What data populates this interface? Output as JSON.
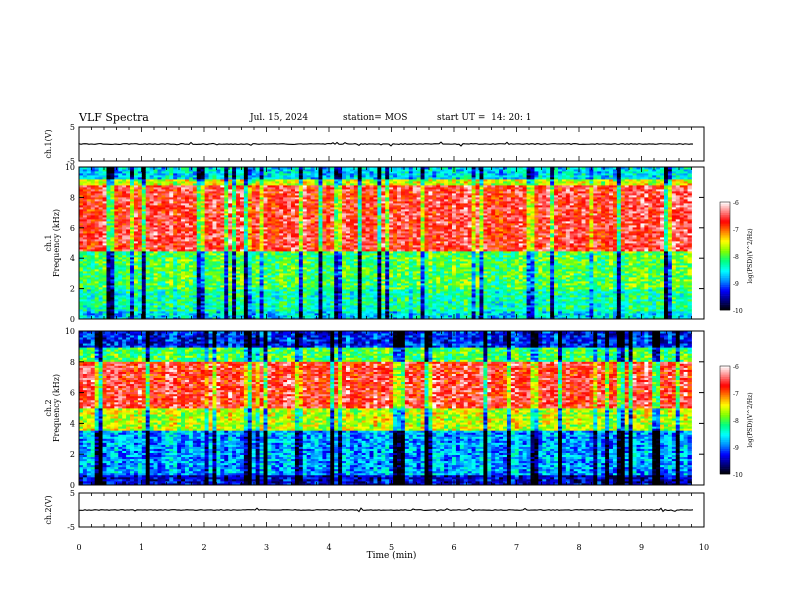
{
  "header": {
    "title": "VLF Spectra",
    "date": "Jul. 15, 2024",
    "station": "station= MOS",
    "start": "start UT =  14: 20: 1"
  },
  "chart_data": [
    {
      "type": "line",
      "name": "ch1-waveform",
      "ylabel": "ch.1(V)",
      "ylim": [
        -5,
        5
      ],
      "yticks": [
        "5",
        "-5"
      ],
      "xlim": [
        0,
        10
      ],
      "level": 0
    },
    {
      "type": "heatmap",
      "name": "ch1-spectrogram",
      "ylabel": "ch.1\nFrequency (kHz)",
      "ylabel_line1": "ch.1",
      "ylabel_line2": "Frequency (kHz)",
      "ylim": [
        0,
        10
      ],
      "yticks": [
        "0",
        "2",
        "4",
        "6",
        "8",
        "10"
      ],
      "xlim": [
        0,
        10
      ],
      "data_end_min": 9.8,
      "bands": [
        {
          "from": 0.0,
          "to": 0.5,
          "level": -8.6
        },
        {
          "from": 0.5,
          "to": 2.0,
          "level": -8.3
        },
        {
          "from": 2.0,
          "to": 4.5,
          "level": -8.0
        },
        {
          "from": 4.5,
          "to": 8.8,
          "level": -6.6
        },
        {
          "from": 8.8,
          "to": 9.2,
          "level": -7.6
        },
        {
          "from": 9.2,
          "to": 10.0,
          "level": -8.6
        }
      ],
      "colorbar": {
        "label": "log(PSD)(V²/Hz)",
        "label_text": "log(PSD)(V^2/Hz)",
        "min": -10,
        "max": -6,
        "ticks": [
          "-6",
          "-7",
          "-8",
          "-9",
          "-10"
        ]
      }
    },
    {
      "type": "heatmap",
      "name": "ch2-spectrogram",
      "ylabel_line1": "ch.2",
      "ylabel_line2": "Frequency (kHz)",
      "ylim": [
        0,
        10
      ],
      "yticks": [
        "0",
        "2",
        "4",
        "6",
        "8",
        "10"
      ],
      "xlim": [
        0,
        10
      ],
      "data_end_min": 9.8,
      "bands": [
        {
          "from": 0.0,
          "to": 0.6,
          "level": -9.4
        },
        {
          "from": 0.6,
          "to": 3.5,
          "level": -8.8
        },
        {
          "from": 3.5,
          "to": 5.0,
          "level": -7.6
        },
        {
          "from": 5.0,
          "to": 8.0,
          "level": -6.6
        },
        {
          "from": 8.0,
          "to": 9.0,
          "level": -8.0
        },
        {
          "from": 9.0,
          "to": 10.0,
          "level": -9.2
        }
      ],
      "colorbar": {
        "label_text": "log(PSD)(V^2/Hz)",
        "min": -10,
        "max": -6,
        "ticks": [
          "-6",
          "-7",
          "-8",
          "-9",
          "-10"
        ]
      }
    },
    {
      "type": "line",
      "name": "ch2-waveform",
      "ylabel": "ch.2(V)",
      "ylim": [
        -5,
        5
      ],
      "yticks": [
        "5",
        "-5"
      ],
      "xlim": [
        0,
        10
      ],
      "level": 0
    }
  ],
  "xaxis": {
    "label": "Time (min)",
    "ticks": [
      "0",
      "1",
      "2",
      "3",
      "4",
      "5",
      "6",
      "7",
      "8",
      "9",
      "10"
    ]
  },
  "colormap": [
    "#000000",
    "#00007f",
    "#0000ff",
    "#0090ff",
    "#00ffff",
    "#00ff80",
    "#80ff00",
    "#ffff00",
    "#ff8000",
    "#ff0000",
    "#ff8080",
    "#ffffff"
  ]
}
